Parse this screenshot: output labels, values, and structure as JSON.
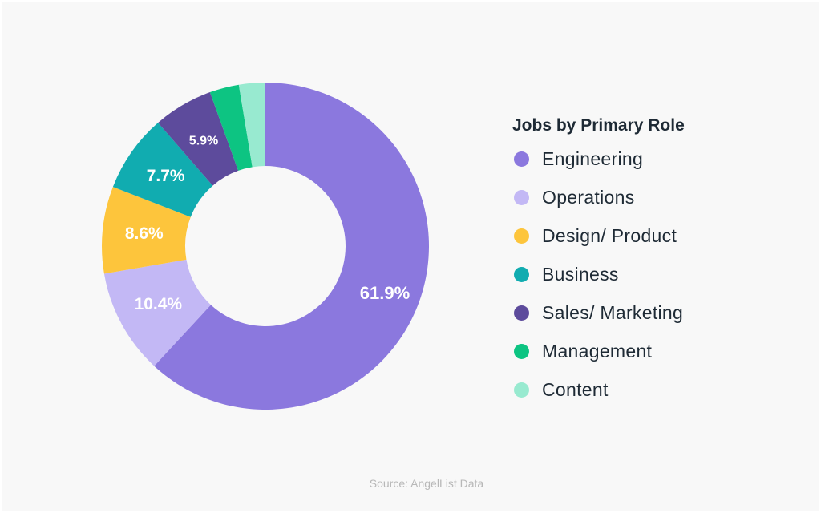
{
  "chart_data": {
    "type": "pie",
    "variant": "donut",
    "title": "Jobs by Primary Role",
    "categories": [
      "Engineering",
      "Operations",
      "Design/ Product",
      "Business",
      "Sales/ Marketing",
      "Management",
      "Content"
    ],
    "values": [
      61.9,
      10.4,
      8.6,
      7.7,
      5.9,
      2.9,
      2.6
    ],
    "data_labels": [
      "61.9%",
      "10.4%",
      "8.6%",
      "7.7%",
      "5.9%",
      "",
      ""
    ],
    "colors": [
      "#8b78de",
      "#c3b8f5",
      "#fdc53c",
      "#11acb0",
      "#5d4b9c",
      "#0dc482",
      "#98ead0"
    ],
    "legend_placement": "right",
    "start": "top, clockwise"
  },
  "source": "Source: AngelList Data"
}
